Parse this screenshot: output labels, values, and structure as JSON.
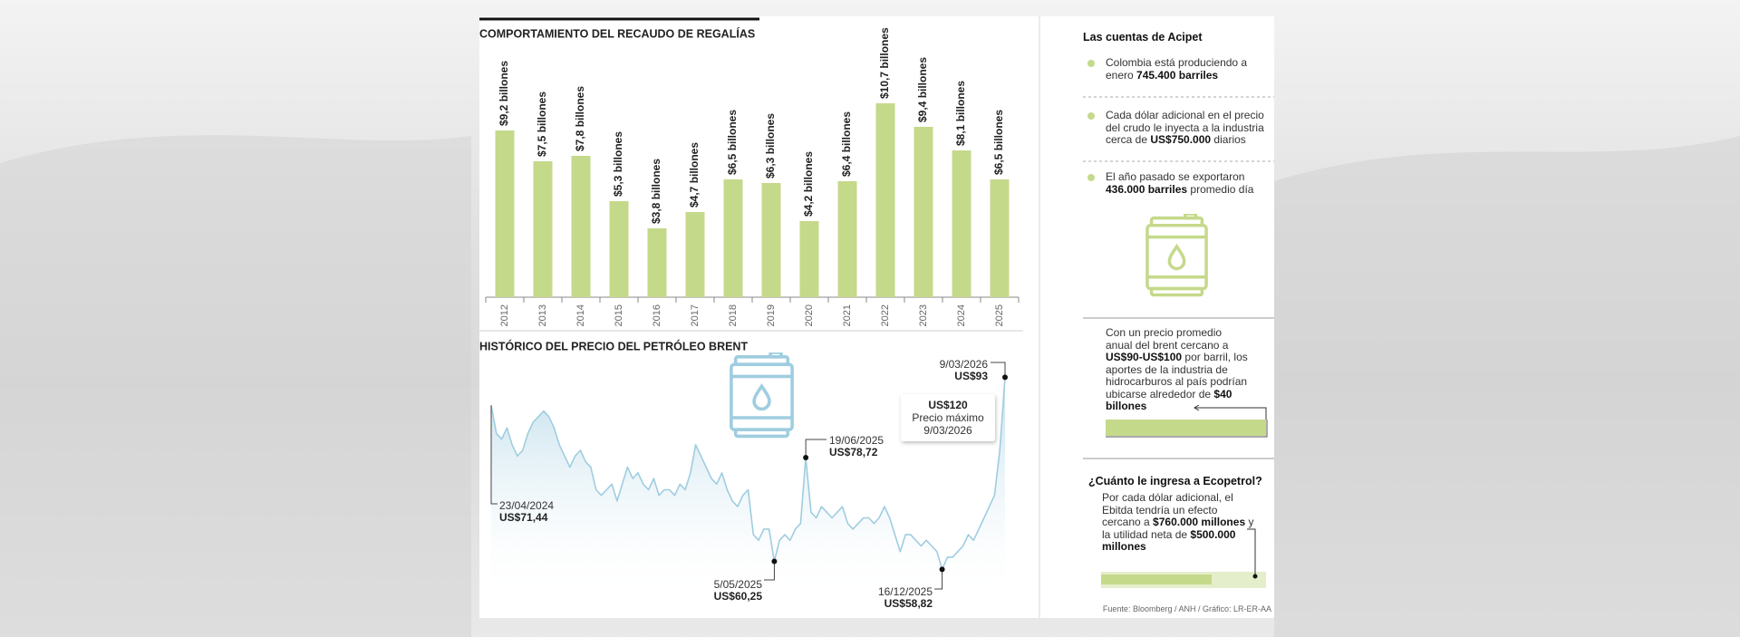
{
  "chart_data": [
    {
      "type": "bar",
      "title": "COMPORTAMIENTO DEL RECAUDO DE REGALÍAS",
      "categories": [
        "2012",
        "2013",
        "2014",
        "2015",
        "2016",
        "2017",
        "2018",
        "2019",
        "2020",
        "2021",
        "2022",
        "2023",
        "2024",
        "2025"
      ],
      "values": [
        9.2,
        7.5,
        7.8,
        5.3,
        3.8,
        4.7,
        6.5,
        6.3,
        4.2,
        6.4,
        10.7,
        9.4,
        8.1,
        6.5
      ],
      "value_labels": [
        "$9,2 billones",
        "$7,5 billones",
        "$7,8 billones",
        "$5,3 billones",
        "$3,8 billones",
        "$4,7 billones",
        "$6,5 billones",
        "$6,3 billones",
        "$4,2 billones",
        "$6,4 billones",
        "$10,7 billones",
        "$9,4 billones",
        "$8,1 billones",
        "$6,5 billones"
      ],
      "color": "#c5d98b",
      "ylim": [
        0,
        12
      ]
    },
    {
      "type": "line",
      "title": "HISTÓRICO DEL PRECIO DEL PETRÓLEO BRENT",
      "values": [
        88,
        83,
        82,
        84,
        81,
        79,
        80,
        83,
        85,
        86,
        87,
        86,
        84,
        81,
        79,
        77,
        79,
        80,
        78,
        77,
        73,
        72,
        73,
        74,
        71,
        74,
        77,
        75,
        76,
        74,
        73,
        75,
        72,
        73,
        73,
        72,
        74,
        73,
        76,
        81,
        79,
        77,
        75,
        74,
        76,
        73,
        71,
        70,
        72,
        73,
        65,
        64,
        66,
        66,
        60.25,
        64,
        65,
        64,
        66,
        67,
        78.72,
        69,
        68,
        70,
        69,
        68,
        69,
        70,
        67,
        66,
        67,
        68,
        68,
        67,
        68,
        70,
        68,
        65,
        62,
        65,
        65,
        64,
        63,
        64,
        63,
        62,
        58.82,
        61,
        61,
        62,
        63,
        65,
        64,
        66,
        68,
        70,
        72,
        80,
        93
      ],
      "color": "#9fcde0",
      "ylim": [
        55.5,
        95
      ],
      "annotations": [
        {
          "date": "23/04/2024",
          "label": "US$71,44",
          "value": 71.44
        },
        {
          "date": "5/05/2025",
          "label": "US$60,25",
          "value": 60.25
        },
        {
          "date": "19/06/2025",
          "label": "US$78,72",
          "value": 78.72
        },
        {
          "date": "16/12/2025",
          "label": "US$58,82",
          "value": 58.82
        },
        {
          "date": "9/03/2026",
          "label": "US$93",
          "value": 93
        }
      ],
      "max_box": {
        "label": "US$120",
        "value": 120,
        "text": "Precio máximo",
        "date": "9/03/2026"
      }
    }
  ],
  "sidebar": {
    "title": "Las cuentas de Acipet",
    "bullets": [
      [
        {
          "t": "Colombia está produciendo a enero "
        },
        {
          "b": "745.400 barriles"
        }
      ],
      [
        {
          "t": "Cada dólar adicional en el precio del crudo le inyecta a la industria cerca de "
        },
        {
          "b": "US$750.000"
        },
        {
          "t": " diarios"
        }
      ],
      [
        {
          "t": "El año pasado se exportaron "
        },
        {
          "b": "436.000 barriles"
        },
        {
          "t": " promedio día"
        }
      ]
    ],
    "projection": [
      {
        "t": "Con un precio promedio anual del brent cercano a "
      },
      {
        "b": "US$90-US$100"
      },
      {
        "t": " por barril, los aportes de la industria de hidrocarburos al país podrían ubicarse alrededor de "
      },
      {
        "b": "$40 billones"
      }
    ],
    "ecopetrol": {
      "title": "¿Cuánto le ingresa a Ecopetrol?",
      "text": [
        {
          "t": "Por cada dólar adicional, el Ebitda tendría un efecto cercano a "
        },
        {
          "b": "$760.000 millones"
        },
        {
          "t": " y la utilidad neta de "
        },
        {
          "b": "$500.000 millones"
        }
      ]
    },
    "source": "Fuente: Bloomberg / ANH / Gráfico: LR-ER-AA"
  }
}
